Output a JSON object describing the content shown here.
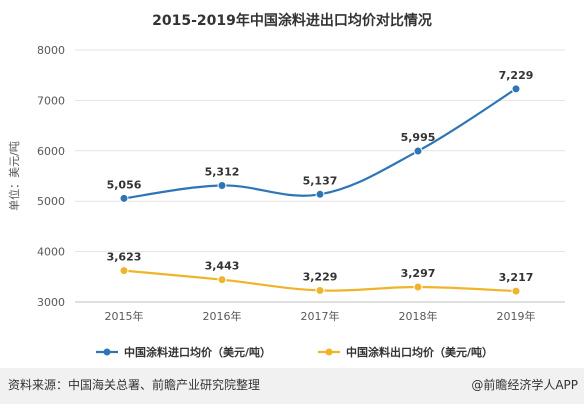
{
  "chart_data": {
    "type": "line",
    "title": "2015-2019年中国涂料进出口均价对比情况",
    "ylabel": "单位：美元/吨",
    "categories": [
      "2015年",
      "2016年",
      "2017年",
      "2018年",
      "2019年"
    ],
    "ylim": [
      3000,
      8000
    ],
    "yticks": [
      "3000",
      "4000",
      "5000",
      "6000",
      "7000",
      "8000"
    ],
    "grid": true,
    "legend_position": "bottom",
    "series": [
      {
        "name": "中国涂料进口均价（美元/吨）",
        "values": [
          5056,
          5312,
          5137,
          5995,
          7229
        ],
        "labels": [
          "5,056",
          "5,312",
          "5,137",
          "5,995",
          "7,229"
        ],
        "color": "#2e75b6"
      },
      {
        "name": "中国涂料出口均价（美元/吨）",
        "values": [
          3623,
          3443,
          3229,
          3297,
          3217
        ],
        "labels": [
          "3,623",
          "3,443",
          "3,229",
          "3,297",
          "3,217"
        ],
        "color": "#f0b429"
      }
    ]
  },
  "footer": {
    "source": "资料来源：中国海关总署、前瞻产业研究院整理",
    "brand": "@前瞻经济学人APP"
  }
}
